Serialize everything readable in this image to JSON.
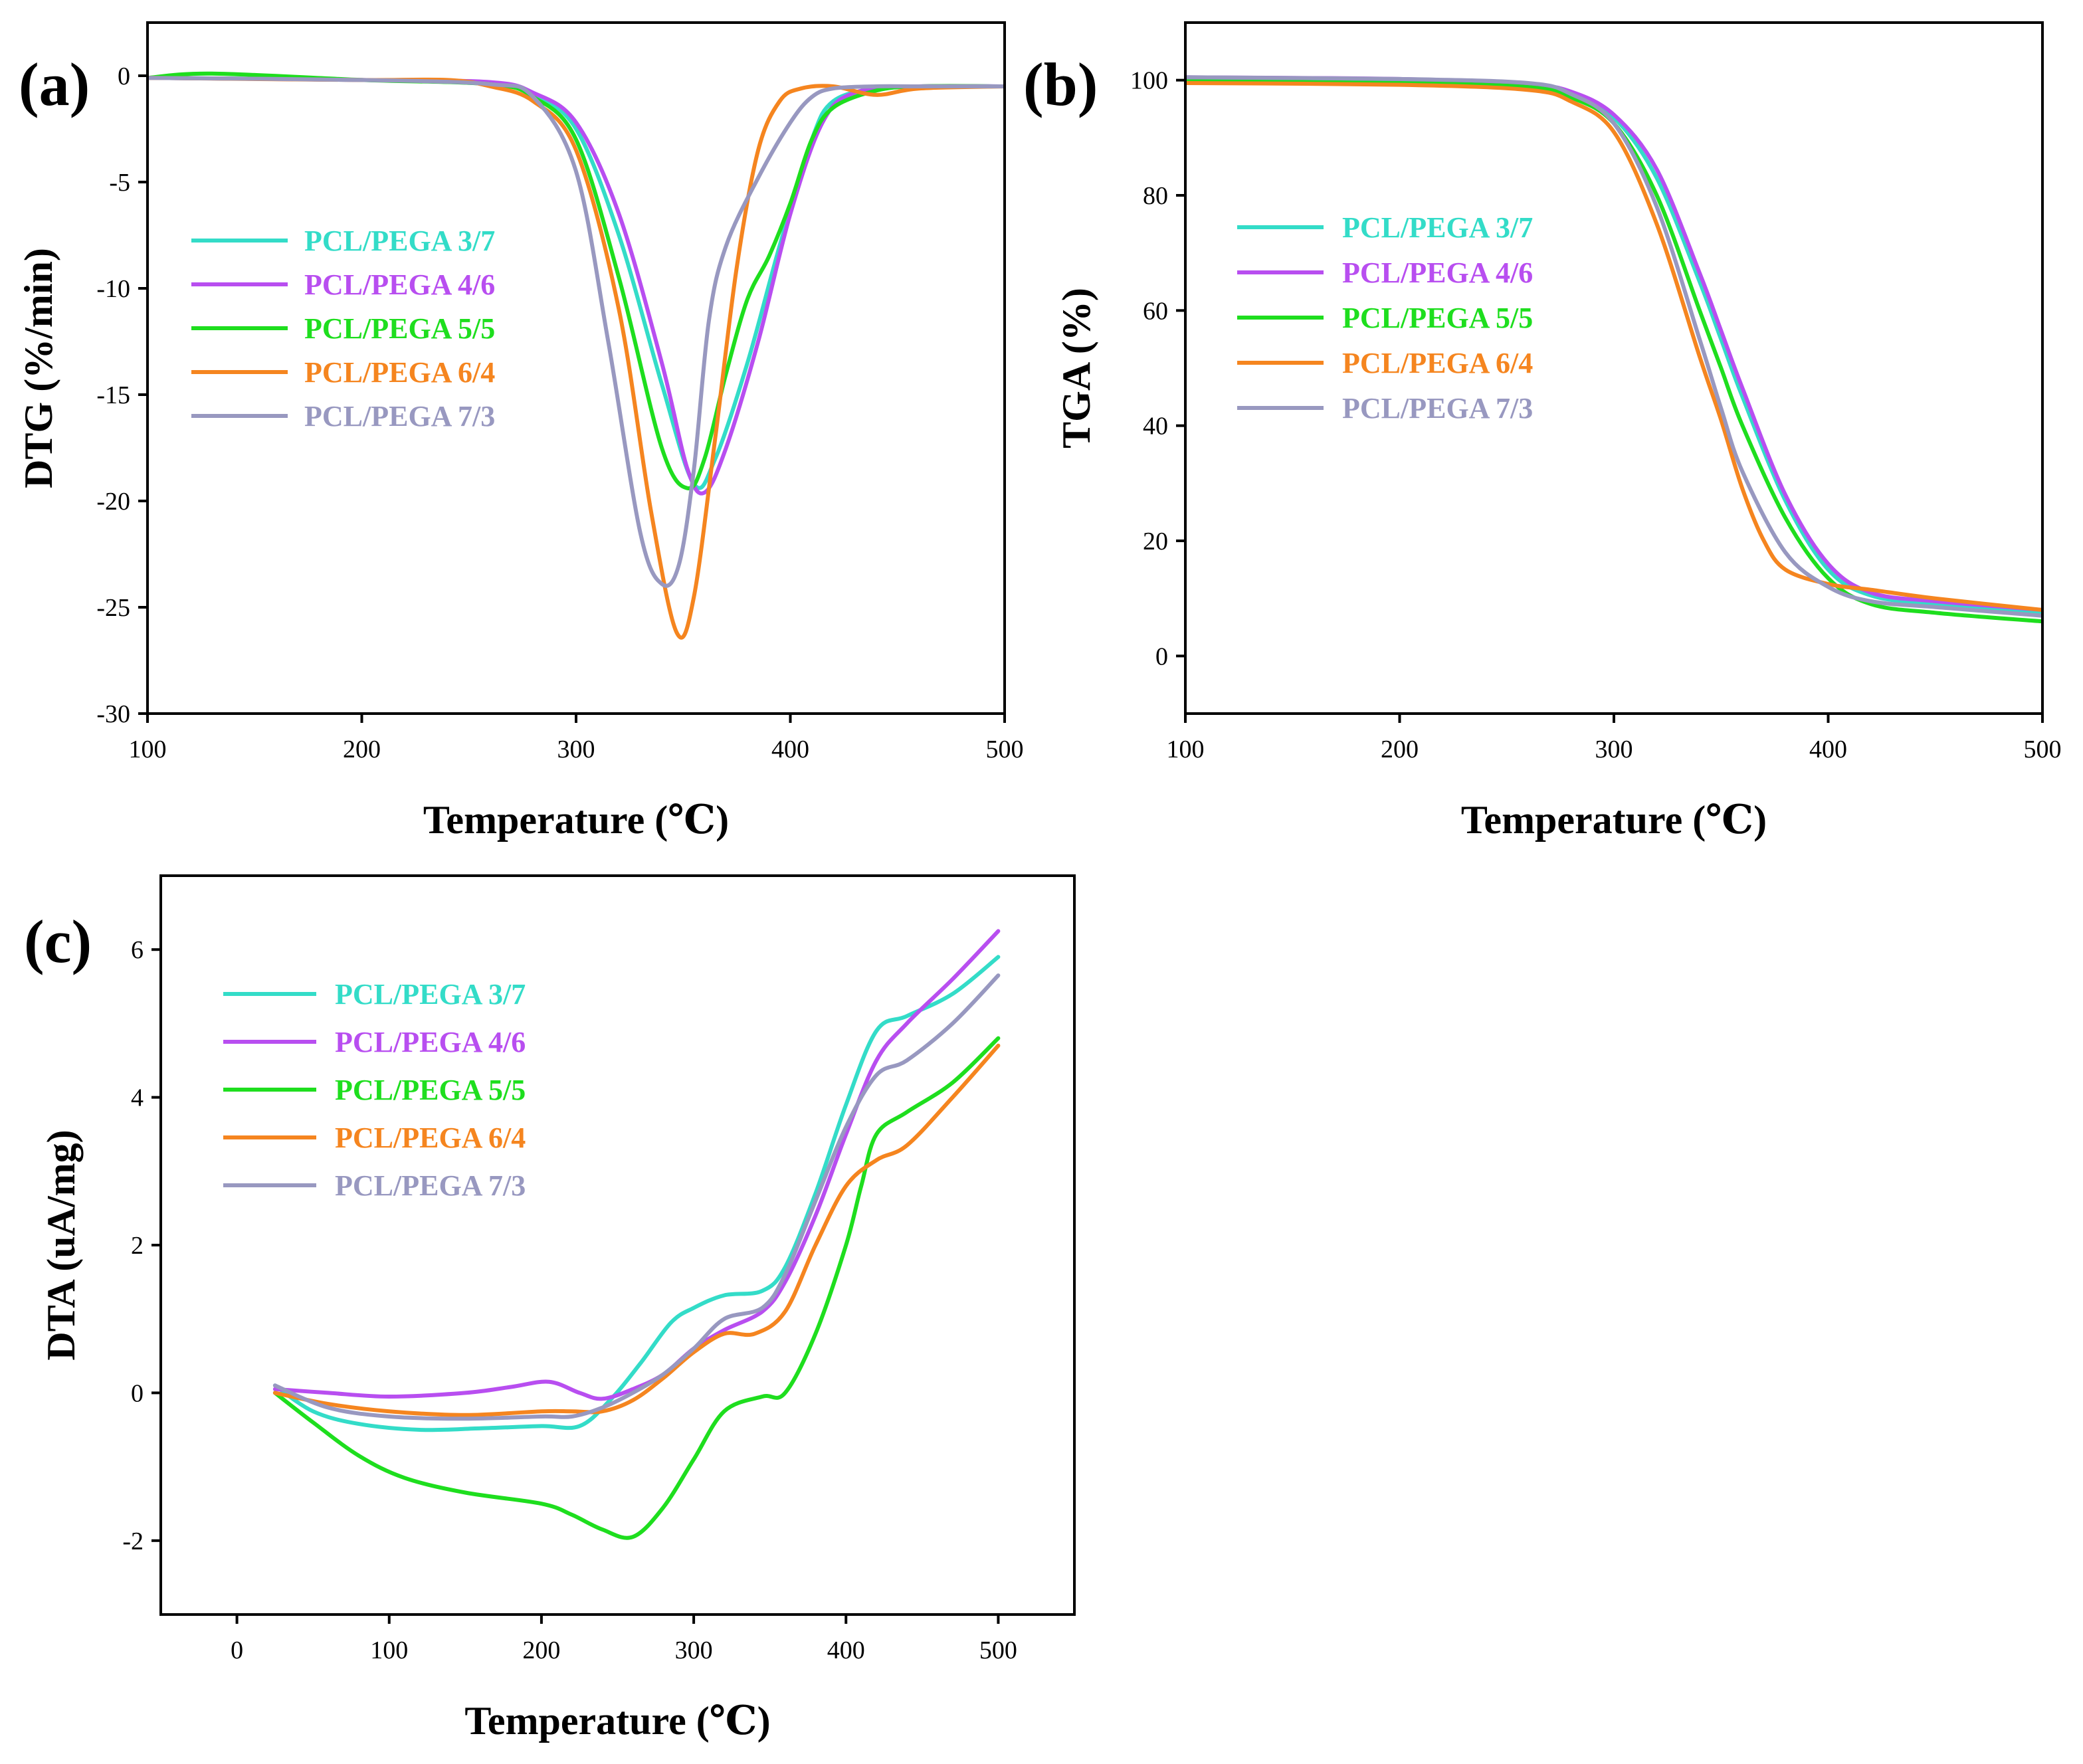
{
  "chart_data": [
    {
      "type": "line",
      "panel_label": "(a)",
      "xlabel": "Temperature (℃)",
      "ylabel": "DTG (%/min)",
      "xlim": [
        100,
        500
      ],
      "ylim": [
        -30,
        2.5
      ],
      "xticks": [
        100,
        200,
        300,
        400,
        500
      ],
      "yticks": [
        0,
        -5,
        -10,
        -15,
        -20,
        -25,
        -30
      ],
      "legend_position": "left-middle",
      "series": [
        {
          "name": "PCL/PEGA 3/7",
          "color": "#33dcc8",
          "x": [
            100,
            200,
            260,
            280,
            300,
            320,
            340,
            355,
            365,
            380,
            395,
            410,
            420,
            440,
            460,
            500
          ],
          "y": [
            -0.1,
            -0.2,
            -0.4,
            -0.9,
            -2.5,
            -7.5,
            -14.5,
            -19.2,
            -18.0,
            -13.5,
            -8.0,
            -3.0,
            -1.2,
            -0.6,
            -0.5,
            -0.5
          ]
        },
        {
          "name": "PCL/PEGA 4/6",
          "color": "#b84ef0",
          "x": [
            100,
            200,
            260,
            280,
            300,
            320,
            340,
            352,
            360,
            370,
            385,
            400,
            415,
            430,
            460,
            500
          ],
          "y": [
            -0.1,
            -0.2,
            -0.3,
            -0.8,
            -2.2,
            -6.5,
            -13.5,
            -18.5,
            -19.6,
            -17.5,
            -12.5,
            -6.5,
            -2.2,
            -0.8,
            -0.5,
            -0.5
          ]
        },
        {
          "name": "PCL/PEGA 5/5",
          "color": "#1ede1e",
          "x": [
            100,
            130,
            200,
            260,
            280,
            300,
            320,
            340,
            352,
            360,
            370,
            380,
            390,
            400,
            410,
            420,
            440,
            460,
            500
          ],
          "y": [
            -0.1,
            0.1,
            -0.2,
            -0.4,
            -1.0,
            -3.0,
            -9.5,
            -17.5,
            -19.4,
            -18.0,
            -14.0,
            -10.5,
            -8.5,
            -6.0,
            -3.0,
            -1.5,
            -0.7,
            -0.5,
            -0.5
          ]
        },
        {
          "name": "PCL/PEGA 6/4",
          "color": "#f5851f",
          "x": [
            100,
            200,
            240,
            260,
            280,
            300,
            320,
            335,
            347,
            355,
            365,
            375,
            385,
            395,
            405,
            420,
            440,
            460,
            500
          ],
          "y": [
            -0.1,
            -0.2,
            -0.2,
            -0.5,
            -1.2,
            -3.5,
            -11.0,
            -20.5,
            -26.2,
            -24.5,
            -17.0,
            -9.0,
            -3.5,
            -1.2,
            -0.6,
            -0.5,
            -0.9,
            -0.6,
            -0.5
          ]
        },
        {
          "name": "PCL/PEGA 7/3",
          "color": "#9898c0",
          "x": [
            100,
            200,
            260,
            280,
            300,
            315,
            330,
            340,
            348,
            355,
            362,
            370,
            385,
            400,
            410,
            420,
            440,
            460,
            500
          ],
          "y": [
            -0.1,
            -0.2,
            -0.4,
            -1.0,
            -4.5,
            -12.5,
            -21.5,
            -23.9,
            -23.0,
            -18.5,
            -11.5,
            -8.0,
            -4.8,
            -2.2,
            -1.0,
            -0.6,
            -0.5,
            -0.5,
            -0.5
          ]
        }
      ]
    },
    {
      "type": "line",
      "panel_label": "(b)",
      "xlabel": "Temperature (℃)",
      "ylabel": "TGA (%)",
      "xlim": [
        100,
        500
      ],
      "ylim": [
        -10,
        110
      ],
      "xticks": [
        100,
        200,
        300,
        400,
        500
      ],
      "yticks": [
        0,
        20,
        40,
        60,
        80,
        100
      ],
      "legend_position": "left-upper-middle",
      "series": [
        {
          "name": "PCL/PEGA 3/7",
          "color": "#33dcc8",
          "x": [
            100,
            200,
            260,
            280,
            300,
            320,
            340,
            350,
            360,
            380,
            400,
            420,
            450,
            500
          ],
          "y": [
            100.3,
            100,
            99,
            97.5,
            93.5,
            83,
            65,
            55,
            45,
            27,
            15,
            10.5,
            9,
            7.5
          ]
        },
        {
          "name": "PCL/PEGA 4/6",
          "color": "#b84ef0",
          "x": [
            100,
            200,
            260,
            280,
            300,
            320,
            340,
            350,
            360,
            380,
            400,
            420,
            450,
            500
          ],
          "y": [
            100.5,
            100.2,
            99.2,
            98,
            94,
            84.5,
            66.5,
            56.5,
            46.5,
            28,
            16,
            11,
            9.5,
            8
          ]
        },
        {
          "name": "PCL/PEGA 5/5",
          "color": "#1ede1e",
          "x": [
            100,
            200,
            260,
            280,
            300,
            320,
            340,
            350,
            360,
            380,
            400,
            420,
            450,
            500
          ],
          "y": [
            99.8,
            99.5,
            98.8,
            97,
            92.5,
            80,
            60,
            50,
            40,
            24,
            13.5,
            9,
            7.5,
            6
          ]
        },
        {
          "name": "PCL/PEGA 6/4",
          "color": "#f5851f",
          "x": [
            100,
            200,
            260,
            280,
            300,
            320,
            340,
            350,
            360,
            370,
            380,
            400,
            420,
            450,
            500
          ],
          "y": [
            99.5,
            99.2,
            98.3,
            96.3,
            91,
            75,
            52,
            41,
            29,
            20,
            15,
            12.5,
            11.5,
            10,
            8
          ]
        },
        {
          "name": "PCL/PEGA 7/3",
          "color": "#9898c0",
          "x": [
            100,
            200,
            260,
            280,
            300,
            320,
            340,
            350,
            360,
            380,
            400,
            420,
            450,
            500
          ],
          "y": [
            100.5,
            100.2,
            99.5,
            97.6,
            92.5,
            78,
            55,
            43,
            32,
            18,
            12,
            9.5,
            8.5,
            7
          ]
        }
      ]
    },
    {
      "type": "line",
      "panel_label": "(c)",
      "xlabel": "Temperature (℃)",
      "ylabel": "DTA (uA/mg)",
      "xlim": [
        -50,
        550
      ],
      "ylim": [
        -3,
        7
      ],
      "xticks": [
        0,
        100,
        200,
        300,
        400,
        500
      ],
      "yticks": [
        -2,
        0,
        2,
        4,
        6
      ],
      "legend_position": "top-left",
      "series": [
        {
          "name": "PCL/PEGA 3/7",
          "color": "#33dcc8",
          "x": [
            25,
            50,
            80,
            120,
            160,
            200,
            225,
            245,
            265,
            285,
            300,
            320,
            345,
            360,
            380,
            400,
            420,
            440,
            470,
            500
          ],
          "y": [
            0.1,
            -0.25,
            -0.42,
            -0.5,
            -0.48,
            -0.45,
            -0.45,
            -0.1,
            0.4,
            0.95,
            1.15,
            1.32,
            1.38,
            1.7,
            2.7,
            3.9,
            4.9,
            5.1,
            5.4,
            5.9
          ]
        },
        {
          "name": "PCL/PEGA 4/6",
          "color": "#b84ef0",
          "x": [
            25,
            60,
            100,
            150,
            180,
            205,
            225,
            240,
            260,
            280,
            300,
            320,
            345,
            360,
            380,
            400,
            420,
            440,
            470,
            500
          ],
          "y": [
            0.05,
            0,
            -0.05,
            0,
            0.08,
            0.15,
            0.0,
            -0.08,
            0.05,
            0.25,
            0.6,
            0.85,
            1.1,
            1.5,
            2.4,
            3.5,
            4.5,
            5.0,
            5.6,
            6.25
          ]
        },
        {
          "name": "PCL/PEGA 5/5",
          "color": "#1ede1e",
          "x": [
            25,
            50,
            80,
            110,
            150,
            200,
            220,
            240,
            260,
            280,
            300,
            320,
            345,
            360,
            380,
            400,
            410,
            420,
            440,
            470,
            500
          ],
          "y": [
            0.0,
            -0.4,
            -0.85,
            -1.15,
            -1.35,
            -1.5,
            -1.65,
            -1.85,
            -1.95,
            -1.55,
            -0.9,
            -0.25,
            -0.05,
            0.0,
            0.8,
            2.0,
            2.8,
            3.5,
            3.8,
            4.2,
            4.8
          ]
        },
        {
          "name": "PCL/PEGA 6/4",
          "color": "#f5851f",
          "x": [
            25,
            60,
            100,
            150,
            200,
            220,
            240,
            260,
            280,
            300,
            320,
            340,
            360,
            380,
            400,
            420,
            440,
            470,
            500
          ],
          "y": [
            0.0,
            -0.15,
            -0.25,
            -0.3,
            -0.25,
            -0.25,
            -0.25,
            -0.1,
            0.2,
            0.55,
            0.8,
            0.8,
            1.1,
            2.0,
            2.8,
            3.15,
            3.35,
            4.0,
            4.7
          ]
        },
        {
          "name": "PCL/PEGA 7/3",
          "color": "#9898c0",
          "x": [
            25,
            60,
            100,
            150,
            200,
            220,
            240,
            260,
            280,
            300,
            320,
            345,
            360,
            380,
            400,
            420,
            440,
            470,
            500
          ],
          "y": [
            0.1,
            -0.2,
            -0.32,
            -0.35,
            -0.32,
            -0.32,
            -0.2,
            0.0,
            0.25,
            0.6,
            1.0,
            1.15,
            1.6,
            2.6,
            3.6,
            4.3,
            4.5,
            5.0,
            5.65
          ]
        }
      ]
    }
  ]
}
